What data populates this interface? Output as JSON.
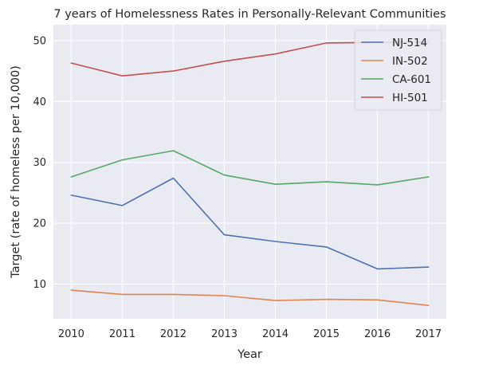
{
  "chart_data": {
    "type": "line",
    "title": "7 years of Homelessness Rates in Personally-Relevant Communities",
    "xlabel": "Year",
    "ylabel": "Target (rate of homeless per 10,000)",
    "x": [
      2010,
      2011,
      2012,
      2013,
      2014,
      2015,
      2016,
      2017
    ],
    "xlim": [
      2009.65,
      2017.35
    ],
    "ylim": [
      4.3,
      52.6
    ],
    "yticks": [
      10,
      20,
      30,
      40,
      50
    ],
    "grid": true,
    "legend_position": "top-right",
    "background": "#eaeaf2",
    "series": [
      {
        "name": "NJ-514",
        "color": "#4c72b0",
        "values": [
          24.6,
          22.9,
          27.4,
          18.1,
          17.0,
          16.1,
          12.5,
          12.8
        ]
      },
      {
        "name": "IN-502",
        "color": "#dd8452",
        "values": [
          9.0,
          8.3,
          8.3,
          8.1,
          7.3,
          7.5,
          7.4,
          6.5
        ]
      },
      {
        "name": "CA-601",
        "color": "#55a868",
        "values": [
          27.6,
          30.4,
          31.9,
          27.9,
          26.4,
          26.8,
          26.3,
          27.6
        ]
      },
      {
        "name": "HI-501",
        "color": "#c44e52",
        "values": [
          46.3,
          44.2,
          45.0,
          46.6,
          47.8,
          49.6,
          49.7,
          49.8
        ]
      }
    ]
  }
}
